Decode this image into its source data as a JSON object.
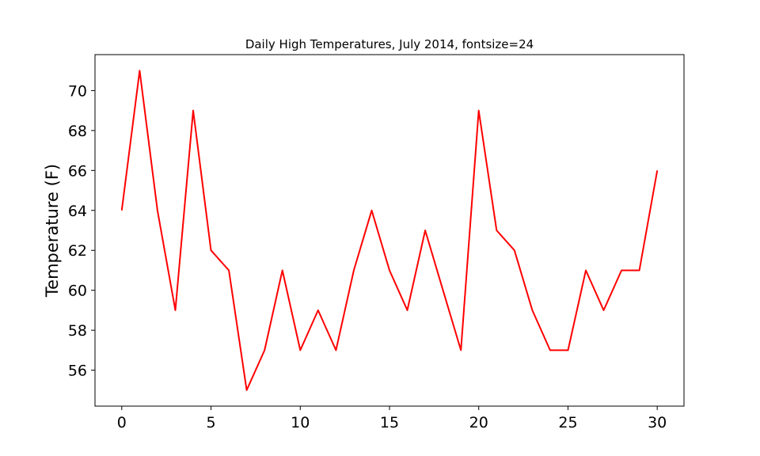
{
  "chart_data": {
    "type": "line",
    "title": "Daily High Temperatures, July 2014, fontsize=24",
    "xlabel": "",
    "ylabel": "Temperature (F)",
    "x": [
      0,
      1,
      2,
      3,
      4,
      5,
      6,
      7,
      8,
      9,
      10,
      11,
      12,
      13,
      14,
      15,
      16,
      17,
      18,
      19,
      20,
      21,
      22,
      23,
      24,
      25,
      26,
      27,
      28,
      29,
      30
    ],
    "series": [
      {
        "values": [
          64,
          71,
          64,
          59,
          69,
          62,
          61,
          55,
          57,
          61,
          57,
          59,
          57,
          61,
          64,
          61,
          59,
          63,
          60,
          57,
          69,
          63,
          62,
          59,
          57,
          57,
          61,
          59,
          61,
          61,
          66
        ],
        "color": "#ff0000"
      }
    ],
    "xlim": [
      -1.5,
      31.5
    ],
    "ylim": [
      54.2,
      71.8
    ],
    "xticks": [
      0,
      5,
      10,
      15,
      20,
      25,
      30
    ],
    "yticks": [
      56,
      58,
      60,
      62,
      64,
      66,
      68,
      70
    ],
    "grid": false,
    "legend": "none"
  }
}
